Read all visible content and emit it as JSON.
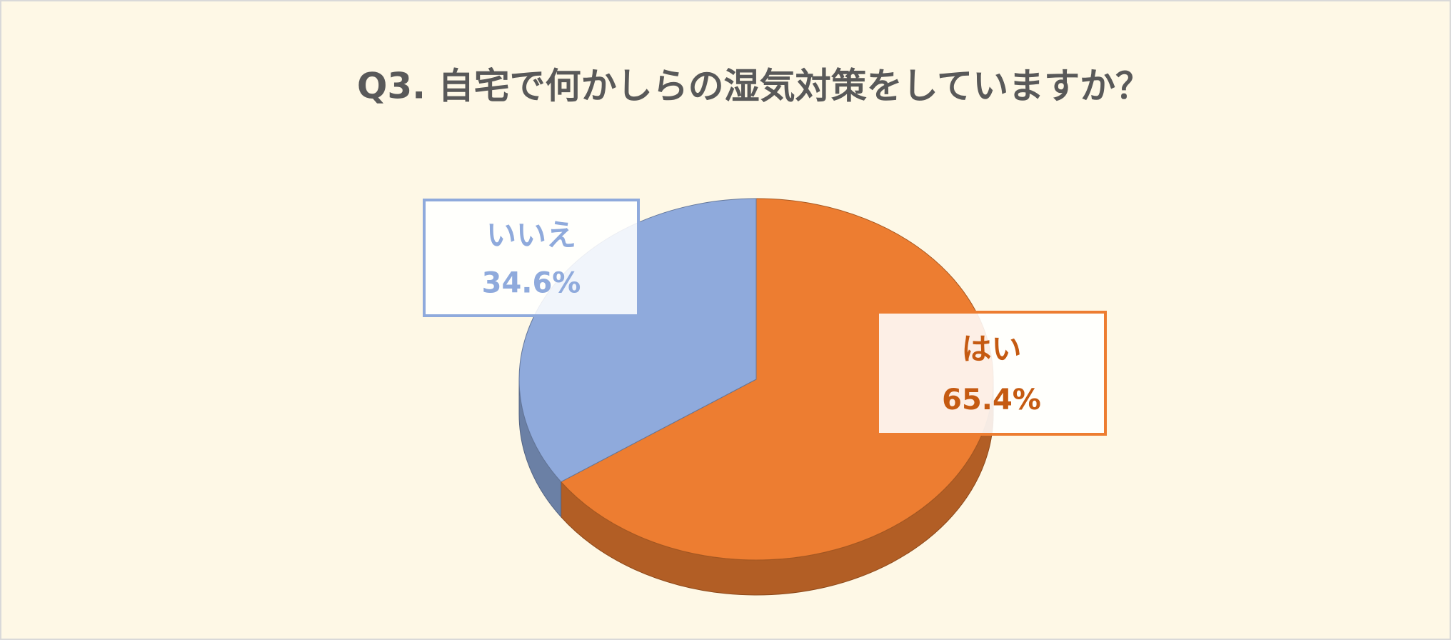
{
  "chart_data": {
    "type": "pie",
    "title": "Q3. 自宅で何かしらの湿気対策をしていますか？",
    "categories": [
      "はい",
      "いいえ"
    ],
    "values": [
      65.4,
      34.6
    ],
    "value_labels": [
      "65.4%",
      "34.6%"
    ],
    "colors": [
      "#ED7D31",
      "#8FAADC"
    ],
    "label_colors": [
      "#C55A11",
      "#8FAADC"
    ]
  }
}
